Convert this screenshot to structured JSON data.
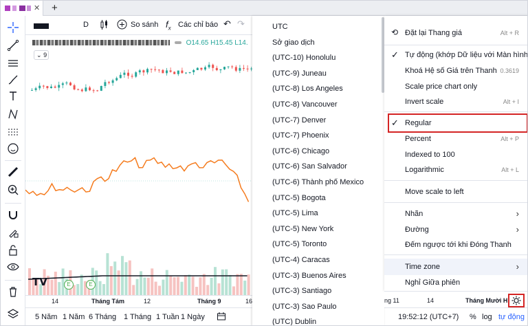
{
  "tab": {
    "close_label": "✕",
    "new_label": "+"
  },
  "toolbar": {
    "interval": "D",
    "compare_label": "So sánh",
    "indicators_label": "Các chỉ báo"
  },
  "legend": {
    "open": "O14.65",
    "high": "H15.45",
    "low": "L14.",
    "count": "9"
  },
  "xaxis": {
    "labels": [
      "14",
      "Tháng Tám",
      "12",
      "Tháng 9",
      "16"
    ]
  },
  "timezones": [
    "UTC",
    "Sở giao dịch",
    "(UTC-10) Honolulu",
    "(UTC-9) Juneau",
    "(UTC-8) Los Angeles",
    "(UTC-8) Vancouver",
    "(UTC-7) Denver",
    "(UTC-7) Phoenix",
    "(UTC-6) Chicago",
    "(UTC-6) San Salvador",
    "(UTC-6) Thành phố Mexico",
    "(UTC-5) Bogota",
    "(UTC-5) Lima",
    "(UTC-5) New York",
    "(UTC-5) Toronto",
    "(UTC-4) Caracas",
    "(UTC-3) Buenos Aires",
    "(UTC-3) Santiago",
    "(UTC-3) Sao Paulo",
    "(UTC) Dublin"
  ],
  "menu": {
    "reset": {
      "label": "Đặt lại Thang giá",
      "shortcut": "Alt + R"
    },
    "auto": {
      "label": "Tự động (khớp Dữ liệu với Màn hình)"
    },
    "lock": {
      "label": "Khoá Hệ số Giá trên Thanh",
      "value": "0.3619"
    },
    "scale_price": {
      "label": "Scale price chart only"
    },
    "invert": {
      "label": "Invert scale",
      "shortcut": "Alt + I"
    },
    "regular": {
      "label": "Regular"
    },
    "percent": {
      "label": "Percent",
      "shortcut": "Alt + P"
    },
    "indexed": {
      "label": "Indexed to 100"
    },
    "log": {
      "label": "Logarithmic",
      "shortcut": "Alt + L"
    },
    "move": {
      "label": "Move scale to left"
    },
    "labels": {
      "label": "Nhãn"
    },
    "lines": {
      "label": "Đường"
    },
    "countdown": {
      "label": "Đếm ngược tới khi Đóng Thanh"
    },
    "timezone": {
      "label": "Time zone"
    },
    "session": {
      "label": "Nghỉ Giữa phiên"
    },
    "check_mark": "✓",
    "arrow": "›"
  },
  "right_axis": {
    "labels": [
      "ng 11",
      "14",
      "Tháng Mười H"
    ]
  },
  "bottom": {
    "ranges": [
      "5 Năm",
      "1 Năm",
      "6 Tháng",
      "1 Tháng",
      "1 Tuần",
      "1 Ngày"
    ],
    "time": "19:52:12 (UTC+7)",
    "percent": "%",
    "log": "log",
    "auto": "tự động"
  },
  "colors": {
    "up": "#26a69a",
    "down": "#ef5350",
    "orange": "#f57c1f",
    "accent": "#2962ff",
    "highlight_box": "#d42424"
  }
}
